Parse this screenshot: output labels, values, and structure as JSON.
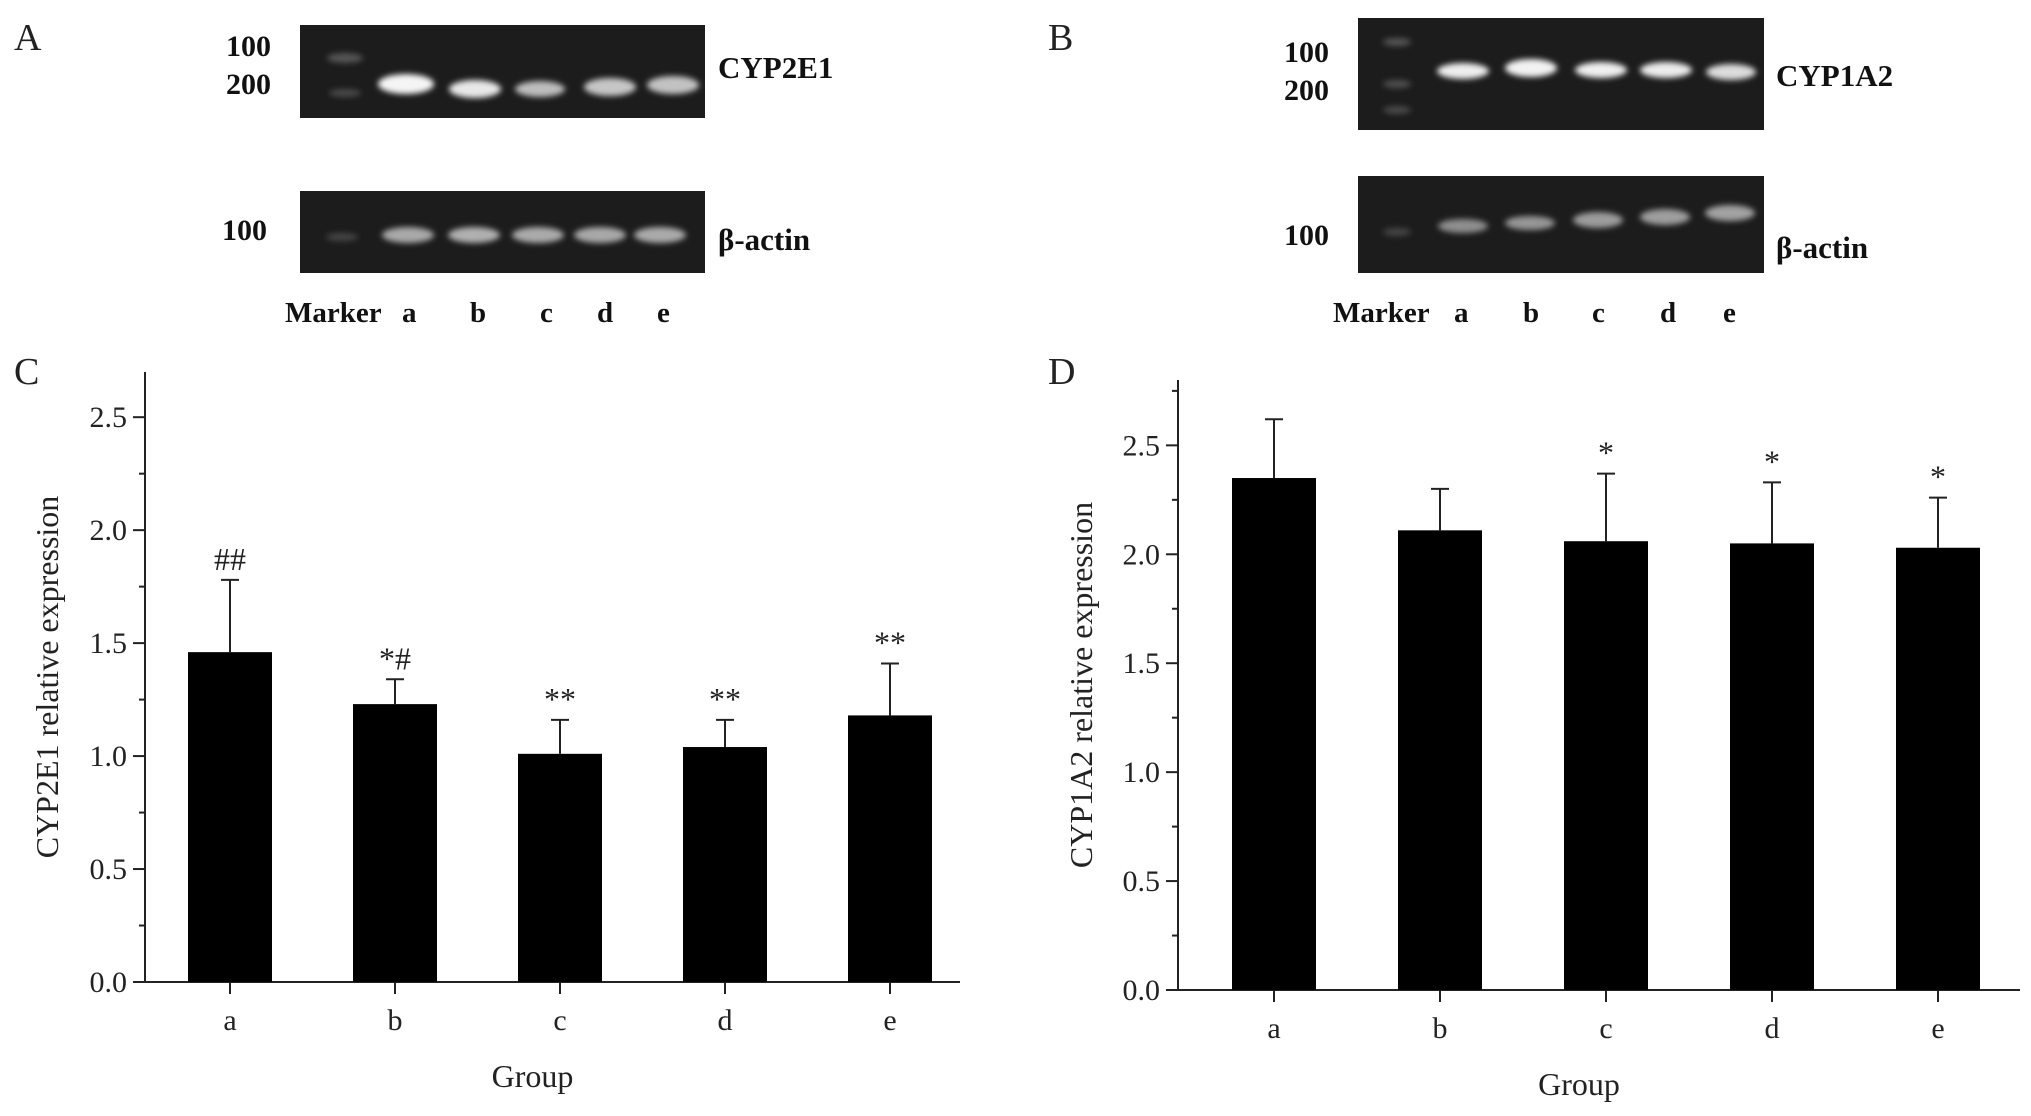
{
  "panels": {
    "A": {
      "letter": "A",
      "marker_upper": [
        "100",
        "200"
      ],
      "gene_label": "CYP2E1",
      "marker_lower": "100",
      "ref_label": "β-actin",
      "lanes": [
        "Marker",
        "a",
        "b",
        "c",
        "d",
        "e"
      ]
    },
    "B": {
      "letter": "B",
      "marker_upper": [
        "100",
        "200"
      ],
      "gene_label": "CYP1A2",
      "marker_lower": "100",
      "ref_label": "β-actin",
      "lanes": [
        "Marker",
        "a",
        "b",
        "c",
        "d",
        "e"
      ]
    },
    "C": {
      "letter": "C"
    },
    "D": {
      "letter": "D"
    }
  },
  "chart_data": [
    {
      "type": "bar",
      "panel": "C",
      "categories": [
        "a",
        "b",
        "c",
        "d",
        "e"
      ],
      "values": [
        1.46,
        1.23,
        1.01,
        1.04,
        1.18
      ],
      "error": [
        0.32,
        0.11,
        0.15,
        0.12,
        0.23
      ],
      "annotations": [
        "##",
        "*#",
        "**",
        "**",
        "**"
      ],
      "xlabel": "Group",
      "ylabel": "CYP2E1 relative expression",
      "ylim": [
        0,
        2.7
      ],
      "yticks": [
        "0.0",
        "0.5",
        "1.0",
        "1.5",
        "2.0",
        "2.5"
      ],
      "bar_color": "#000000"
    },
    {
      "type": "bar",
      "panel": "D",
      "categories": [
        "a",
        "b",
        "c",
        "d",
        "e"
      ],
      "values": [
        2.35,
        2.11,
        2.06,
        2.05,
        2.03
      ],
      "error": [
        0.27,
        0.19,
        0.31,
        0.28,
        0.23
      ],
      "annotations": [
        "",
        "",
        "*",
        "*",
        "*"
      ],
      "xlabel": "Group",
      "ylabel": "CYP1A2 relative expression",
      "ylim": [
        0,
        2.8
      ],
      "yticks": [
        "0.0",
        "0.5",
        "1.0",
        "1.5",
        "2.0",
        "2.5"
      ],
      "bar_color": "#000000"
    }
  ]
}
